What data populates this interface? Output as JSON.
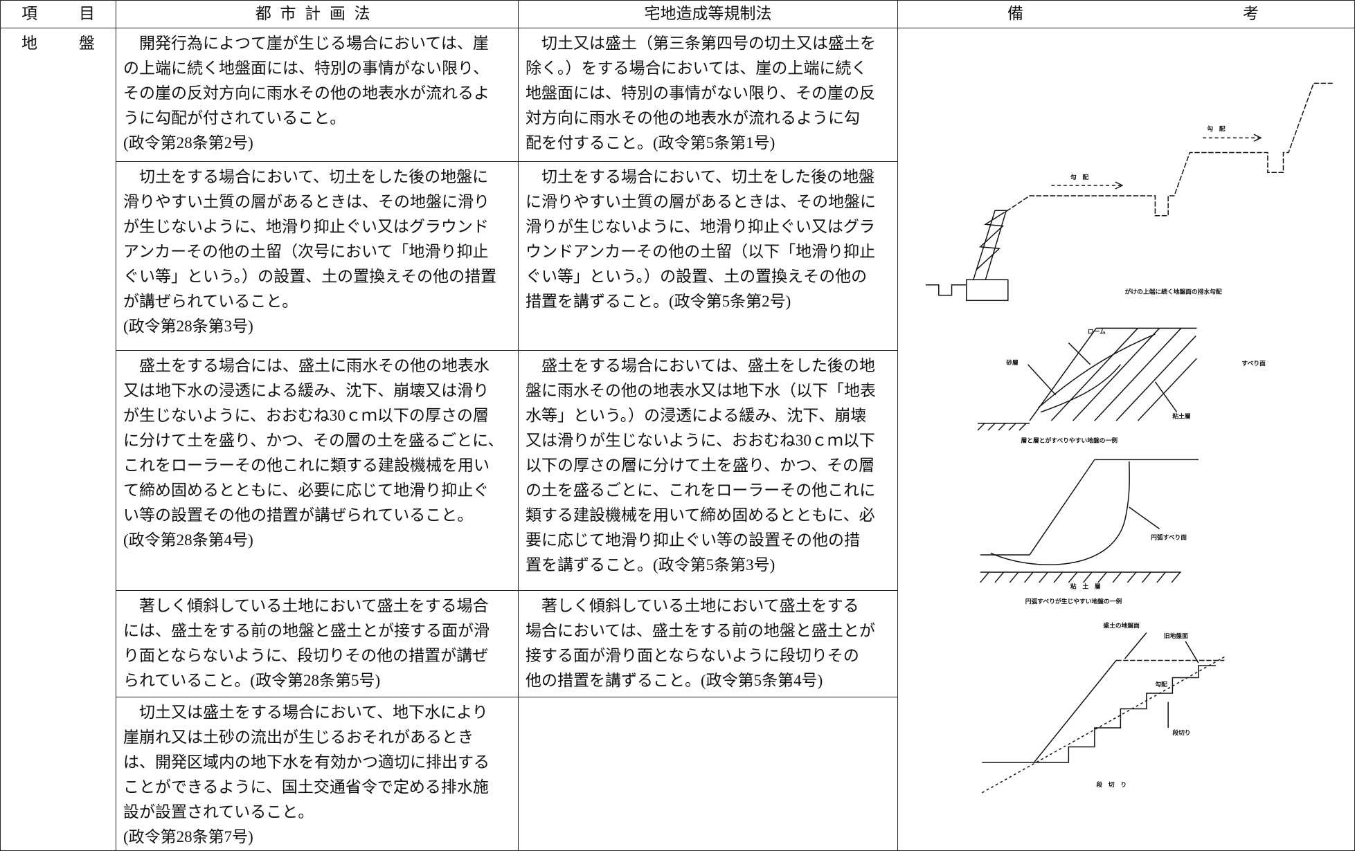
{
  "header": {
    "item": "項目",
    "city": "都市計画法",
    "takuchi": "宅地造成等規制法",
    "remarks": "備考"
  },
  "category": "地盤",
  "rows": [
    {
      "city": [
        "　開発行為によつて崖が生じる場合においては、崖",
        "の上端に続く地盤面には、特別の事情がない限り、",
        "その崖の反対方向に雨水その他の地表水が流れるよ",
        "うに勾配が付されていること。",
        "(政令第28条第2号)"
      ],
      "takuchi": [
        "　切土又は盛土（第三条第四号の切土又は盛土を",
        "除く。）をする場合においては、崖の上端に続く",
        "地盤面には、特別の事情がない限り、その崖の反",
        "対方向に雨水その他の地表水が流れるように勾",
        "配を付すること。(政令第5条第1号)"
      ]
    },
    {
      "city": [
        "　切土をする場合において、切土をした後の地盤に",
        "滑りやすい土質の層があるときは、その地盤に滑り",
        "が生じないように、地滑り抑止ぐい又はグラウンド",
        "アンカーその他の土留（次号において「地滑り抑止",
        "ぐい等」という。）の設置、土の置換えその他の措置",
        "が講ぜられていること。",
        "(政令第28条第3号)"
      ],
      "takuchi": [
        "　切土をする場合において、切土をした後の地盤",
        "に滑りやすい土質の層があるときは、その地盤に",
        "滑りが生じないように、地滑り抑止ぐい又はグラ",
        "ウンドアンカーその他の土留（以下「地滑り抑止",
        "ぐい等」という。）の設置、土の置換えその他の",
        "措置を講ずること。(政令第5条第2号)"
      ]
    },
    {
      "city": [
        "　盛土をする場合には、盛土に雨水その他の地表水",
        "又は地下水の浸透による緩み、沈下、崩壊又は滑り",
        "が生じないように、おおむね30ｃｍ以下の厚さの層",
        "に分けて土を盛り、かつ、その層の土を盛るごとに、",
        "これをローラーその他これに類する建設機械を用い",
        "て締め固めるとともに、必要に応じて地滑り抑止ぐ",
        "い等の設置その他の措置が講ぜられていること。",
        "(政令第28条第4号)"
      ],
      "takuchi": [
        "　盛土をする場合においては、盛土をした後の地",
        "盤に雨水その他の地表水又は地下水（以下「地表",
        "水等」という。）の浸透による緩み、沈下、崩壊",
        "又は滑りが生じないように、おおむね30ｃｍ以下",
        "以下の厚さの層に分けて土を盛り、かつ、その層",
        "の土を盛るごとに、これをローラーその他これに",
        "類する建設機械を用いて締め固めるとともに、必",
        "要に応じて地滑り抑止ぐい等の設置その他の措",
        "置を講ずること。(政令第5条第3号)"
      ]
    },
    {
      "city": [
        "　著しく傾斜している土地において盛土をする場合",
        "には、盛土をする前の地盤と盛土とが接する面が滑",
        "り面とならないように、段切りその他の措置が講ぜ",
        "られていること。(政令第28条第5号)"
      ],
      "takuchi": [
        "　著しく傾斜している土地において盛土をする",
        "場合においては、盛土をする前の地盤と盛土とが",
        "接する面が滑り面とならないように段切りその",
        "他の措置を講ずること。(政令第5条第4号)"
      ]
    },
    {
      "city": [
        "　切土又は盛土をする場合において、地下水により",
        "崖崩れ又は土砂の流出が生じるおそれがあるとき",
        "は、開発区域内の地下水を有効かつ適切に排出する",
        "ことができるように、国土交通省令で定める排水施",
        "設が設置されていること。",
        "(政令第28条第7号)"
      ]
    }
  ],
  "figures": [
    {
      "labels": [
        "勾　配",
        "勾　配",
        "がけの上端に続く地盤面の排水勾配"
      ]
    },
    {
      "labels": [
        "ローム",
        "砂層",
        "すべり面",
        "粘土層",
        "層と層とがすべりやすい地盤の一例"
      ]
    },
    {
      "labels": [
        "円弧すべり面",
        "粘　土　層",
        "円弧すべりが生じやすい地盤の一例"
      ]
    },
    {
      "labels": [
        "盛土の地盤面",
        "旧地盤面",
        "勾配",
        "段切り",
        "段　切　り"
      ]
    }
  ]
}
